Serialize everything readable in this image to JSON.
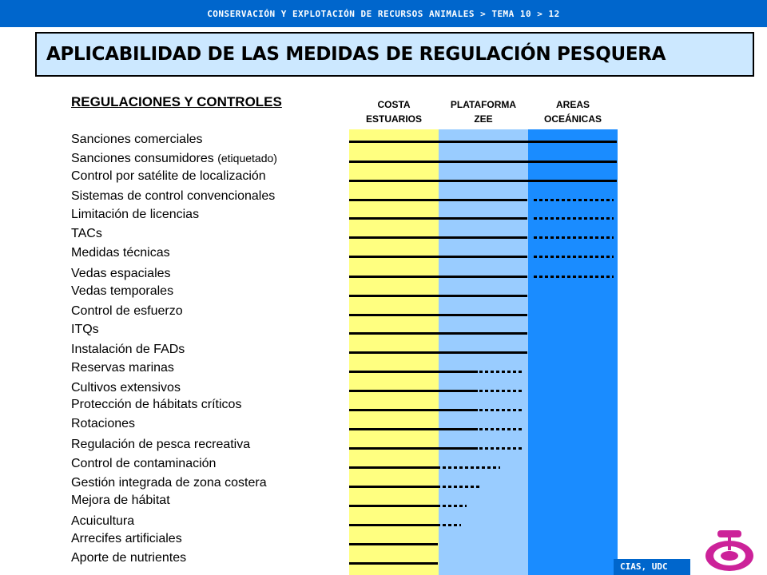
{
  "header": {
    "breadcrumb": "CONSERVACIÓN Y EXPLOTACIÓN DE RECURSOS ANIMALES > TEMA 10 > 12"
  },
  "title": "APLICABILIDAD DE LAS MEDIDAS DE REGULACIÓN PESQUERA",
  "section_heading": "REGULACIONES Y CONTROLES",
  "columns": [
    {
      "line1": "COSTA",
      "line2": "ESTUARIOS"
    },
    {
      "line1": "PLATAFORMA",
      "line2": "ZEE"
    },
    {
      "line1": "AREAS",
      "line2": "OCEÁNICAS"
    }
  ],
  "rows": [
    {
      "label": "Sanciones comerciales",
      "extent": "full"
    },
    {
      "label": "Sanciones consumidores ",
      "label_small": "(etiquetado)",
      "extent": "full"
    },
    {
      "label": "Control por satélite de localización",
      "extent": "full"
    },
    {
      "label": "Sistemas de control convencionales",
      "extent": "coast+shelf, ocean partial"
    },
    {
      "label": "Limitación de licencias",
      "extent": "coast+shelf, ocean partial"
    },
    {
      "label": "TACs",
      "extent": "coast+shelf, ocean partial"
    },
    {
      "label": "Medidas técnicas",
      "extent": "coast+shelf, ocean partial"
    },
    {
      "label": "Vedas espaciales",
      "extent": "coast+shelf, ocean partial"
    },
    {
      "label": "Vedas temporales",
      "extent": "coast+shelf"
    },
    {
      "label": "Control de esfuerzo",
      "extent": "coast+shelf"
    },
    {
      "label": "ITQs",
      "extent": "coast+shelf"
    },
    {
      "label": "Instalación de FADs",
      "extent": "coast+shelf"
    },
    {
      "label": "Reservas marinas",
      "extent": "coast, shelf partial"
    },
    {
      "label": "Cultivos extensivos",
      "extent": "coast, shelf partial"
    },
    {
      "label": "Protección de hábitats críticos",
      "extent": "coast, shelf partial"
    },
    {
      "label": "Rotaciones",
      "extent": "coast, shelf partial"
    },
    {
      "label": "Regulación de pesca recreativa",
      "extent": "coast, shelf partial"
    },
    {
      "label": "Control de contaminación",
      "extent": "coast, shelf partial"
    },
    {
      "label": "Gestión integrada de zona costera",
      "extent": "coast, shelf partial"
    },
    {
      "label": "Mejora de hábitat",
      "extent": "coast, shelf partial"
    },
    {
      "label": "Acuicultura",
      "extent": "coast, shelf partial"
    },
    {
      "label": "Arrecifes artificiales",
      "extent": "coast"
    },
    {
      "label": "Aporte de nutrientes",
      "extent": "coast"
    }
  ],
  "footer": {
    "credit": "CIAS, UDC"
  },
  "colors": {
    "coast": "#ffff80",
    "shelf": "#99ccff",
    "ocean": "#1a8cff",
    "bar": "#0066cc"
  }
}
